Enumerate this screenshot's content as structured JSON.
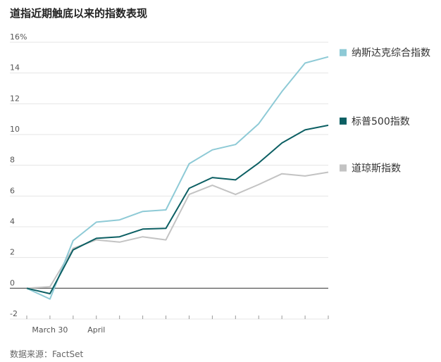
{
  "title": "道指近期触底以来的指数表现",
  "source": "数据来源：FactSet",
  "chart_data": {
    "type": "line",
    "y_unit": "%",
    "ylim": [
      -2,
      16
    ],
    "yticks": [
      -2,
      0,
      2,
      4,
      6,
      8,
      10,
      12,
      14,
      16
    ],
    "x_labels": [
      {
        "index": 1,
        "label": "March 30"
      },
      {
        "index": 3,
        "label": "April"
      }
    ],
    "n_points": 14,
    "grid": true,
    "legend_placement": "right",
    "series": [
      {
        "name": "纳斯达克综合指数",
        "color": "#8ecad6",
        "values": [
          0,
          -0.7,
          3.1,
          4.3,
          4.45,
          5.0,
          5.1,
          8.1,
          9.0,
          9.35,
          10.7,
          12.8,
          14.65,
          15.05
        ]
      },
      {
        "name": "标普500指数",
        "color": "#0c5f63",
        "values": [
          0,
          -0.35,
          2.5,
          3.25,
          3.35,
          3.85,
          3.9,
          6.5,
          7.2,
          7.05,
          8.15,
          9.45,
          10.3,
          10.6
        ]
      },
      {
        "name": "道琼斯指数",
        "color": "#c3c3c3",
        "values": [
          0,
          0.1,
          2.6,
          3.15,
          3.0,
          3.35,
          3.15,
          6.1,
          6.7,
          6.1,
          6.75,
          7.45,
          7.3,
          7.55
        ]
      }
    ]
  }
}
